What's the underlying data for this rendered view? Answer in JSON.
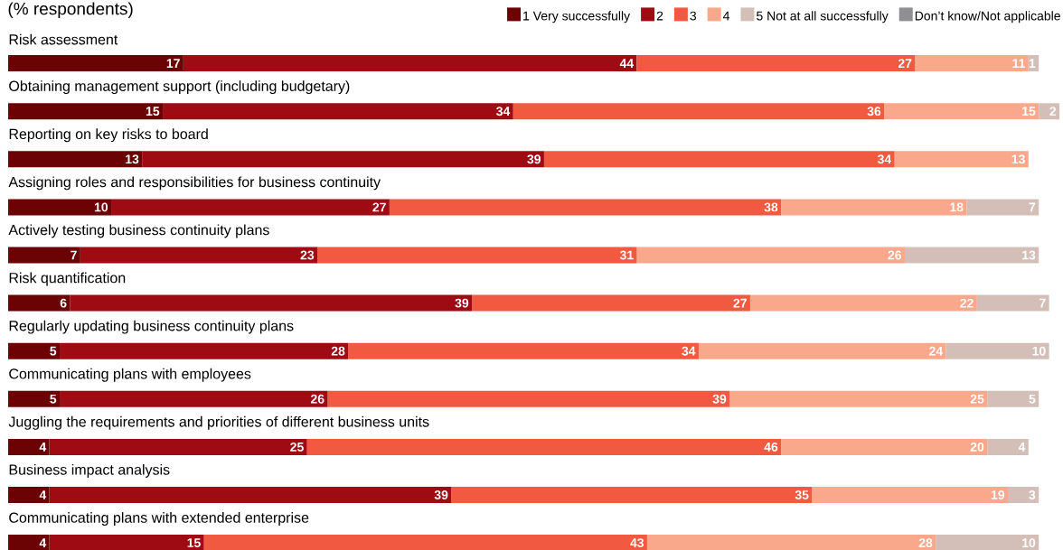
{
  "chart_data": {
    "type": "bar",
    "orientation": "horizontal",
    "stacked": true,
    "data_labels": true,
    "legend": "top right",
    "subtitle": "(% respondents)",
    "categories": [
      "Risk assessment",
      "Obtaining management support (including budgetary)",
      "Reporting on key risks to board",
      "Assigning roles and responsibilities for business continuity",
      "Actively testing business continuity plans",
      "Risk quantification",
      "Regularly updating business continuity plans",
      "Communicating plans with employees",
      "Juggling the requirements and priorities of different business units",
      "Business impact analysis",
      "Communicating plans with extended enterprise"
    ],
    "series": [
      {
        "name": "1 Very successfully",
        "color": "#6b0305",
        "values": [
          17,
          15,
          13,
          10,
          7,
          6,
          5,
          5,
          4,
          4,
          4
        ]
      },
      {
        "name": "2",
        "color": "#9e0b12",
        "values": [
          44,
          34,
          39,
          27,
          23,
          39,
          28,
          26,
          25,
          39,
          15
        ]
      },
      {
        "name": "3",
        "color": "#f15a40",
        "values": [
          27,
          36,
          34,
          38,
          31,
          27,
          34,
          39,
          46,
          35,
          43
        ]
      },
      {
        "name": "4",
        "color": "#f9a88c",
        "values": [
          11,
          15,
          13,
          18,
          26,
          22,
          24,
          25,
          20,
          19,
          28
        ]
      },
      {
        "name": "5 Not at all successfully",
        "color": "#d4bfb8",
        "values": [
          1,
          2,
          null,
          7,
          13,
          7,
          10,
          5,
          4,
          3,
          10
        ]
      },
      {
        "name": "Don’t know/Not applicable",
        "color": "#8e8e93",
        "values": [
          null,
          null,
          null,
          null,
          null,
          null,
          null,
          null,
          null,
          null,
          null
        ]
      }
    ]
  }
}
